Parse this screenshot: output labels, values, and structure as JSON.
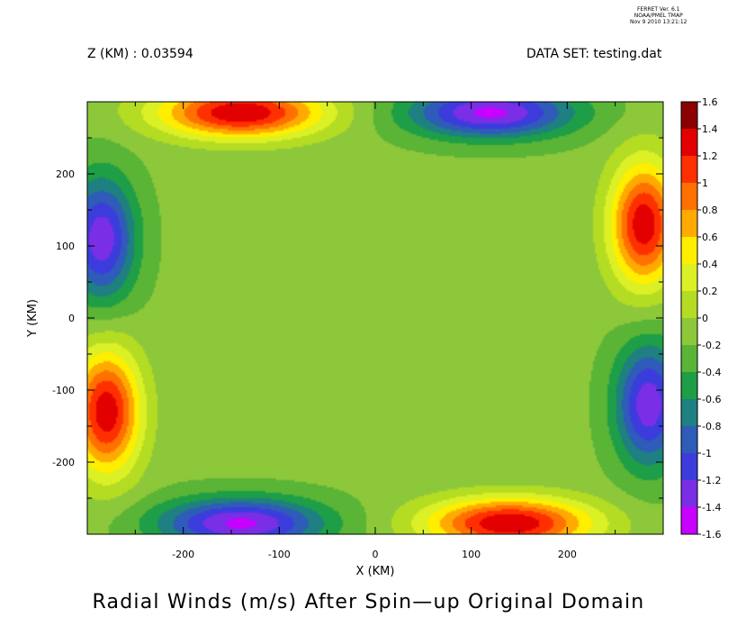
{
  "stamp": {
    "line1": "FERRET Ver. 6.1",
    "line2": "NOAA/PMEL TMAP",
    "line3": "Nov  9 2010 13:21:12"
  },
  "header": {
    "left": "Z (KM) : 0.03594",
    "right": "DATA SET: testing.dat"
  },
  "chart_data": {
    "type": "heatmap",
    "title": "Radial Winds (m/s) After Spin—up Original Domain",
    "xlabel": "X (KM)",
    "ylabel": "Y (KM)",
    "xlim": [
      -300,
      300
    ],
    "ylim": [
      -300,
      300
    ],
    "x_ticks": [
      -200,
      -100,
      0,
      100,
      200
    ],
    "y_ticks": [
      -200,
      -100,
      0,
      100,
      200
    ],
    "value_range": [
      -1.6,
      1.6
    ],
    "colorbar_levels": [
      "1.6",
      "1.4",
      "1.2",
      "1",
      "0.8",
      "0.6",
      "0.4",
      "0.2",
      "0",
      "-0.2",
      "-0.4",
      "-0.6",
      "-0.8",
      "-1",
      "-1.2",
      "-1.4",
      "-1.6"
    ],
    "colorbar_colors": [
      "#8b0000",
      "#e20000",
      "#ff3000",
      "#ff7000",
      "#ffaa00",
      "#ffee00",
      "#dcf026",
      "#b4dc22",
      "#8cc83a",
      "#5ab436",
      "#1e9e46",
      "#1e8080",
      "#2e5cb8",
      "#3c3cdc",
      "#7a2ee6",
      "#c800ff"
    ],
    "extrema": [
      {
        "x": -140,
        "y": 285,
        "value": 1.55
      },
      {
        "x": 280,
        "y": 130,
        "value": 1.5
      },
      {
        "x": 140,
        "y": -285,
        "value": 1.55
      },
      {
        "x": -280,
        "y": -130,
        "value": 1.5
      },
      {
        "x": 120,
        "y": 285,
        "value": -1.3
      },
      {
        "x": -285,
        "y": 110,
        "value": -1.2
      },
      {
        "x": -140,
        "y": -285,
        "value": -1.3
      },
      {
        "x": 285,
        "y": -120,
        "value": -1.2
      }
    ]
  }
}
